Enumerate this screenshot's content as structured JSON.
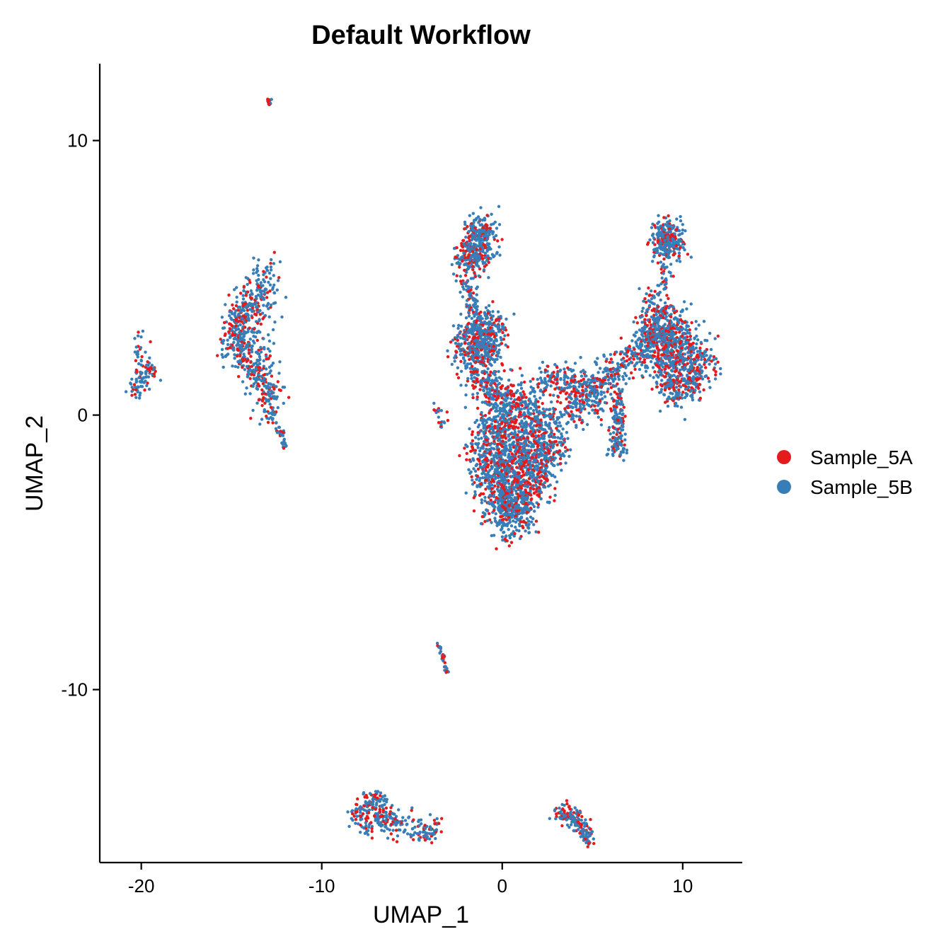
{
  "chart_data": {
    "type": "scatter",
    "title": "Default Workflow",
    "xlabel": "UMAP_1",
    "ylabel": "UMAP_2",
    "xlim": [
      -22.3,
      13.3
    ],
    "ylim": [
      -16.3,
      12.8
    ],
    "x_ticks": [
      -20,
      -10,
      0,
      10
    ],
    "x_tick_labels": [
      "-20",
      "-10",
      "0",
      "10"
    ],
    "y_ticks": [
      -10,
      0,
      10
    ],
    "y_tick_labels": [
      "-10",
      "0",
      "10"
    ],
    "grid": false,
    "legend": {
      "position": "right",
      "entries": [
        {
          "label": "Sample_5A",
          "color": "#E41A1C"
        },
        {
          "label": "Sample_5B",
          "color": "#377EB8"
        }
      ]
    },
    "series": [
      {
        "name": "Sample_5A",
        "color": "#E41A1C"
      },
      {
        "name": "Sample_5B",
        "color": "#377EB8"
      }
    ],
    "clusters": [
      {
        "points": [
          [
            -20.2,
            2.5
          ],
          [
            -20.0,
            1.5
          ],
          [
            -20.3,
            0.9
          ],
          [
            -19.5,
            1.6
          ]
        ],
        "spread": 0.22,
        "n": 110
      },
      {
        "points": [
          [
            -12.9,
            11.4
          ]
        ],
        "spread": 0.07,
        "n": 14
      },
      {
        "points": [
          [
            -13.0,
            5.0
          ],
          [
            -13.6,
            4.4
          ],
          [
            -14.2,
            3.9
          ],
          [
            -14.8,
            3.4
          ],
          [
            -14.9,
            2.7
          ],
          [
            -14.3,
            2.2
          ],
          [
            -13.6,
            1.6
          ],
          [
            -13.0,
            1.0
          ],
          [
            -13.0,
            0.4
          ]
        ],
        "spread": 0.4,
        "n": 650
      },
      {
        "points": [
          [
            -12.7,
            0.0
          ],
          [
            -12.3,
            -0.6
          ],
          [
            -12.0,
            -1.1
          ]
        ],
        "spread": 0.1,
        "n": 40
      },
      {
        "points": [
          [
            -1.5,
            6.6
          ],
          [
            -0.9,
            6.6
          ],
          [
            -2.0,
            5.7
          ],
          [
            -1.2,
            5.8
          ]
        ],
        "spread": 0.35,
        "n": 380
      },
      {
        "points": [
          [
            -1.9,
            4.7
          ],
          [
            -1.5,
            3.9
          ],
          [
            -1.8,
            4.3
          ]
        ],
        "spread": 0.25,
        "n": 70
      },
      {
        "points": [
          [
            -1.8,
            3.2
          ],
          [
            -1.0,
            3.1
          ],
          [
            -0.4,
            3.2
          ],
          [
            -2.3,
            2.4
          ],
          [
            -1.4,
            2.3
          ],
          [
            -0.6,
            2.4
          ],
          [
            -1.2,
            2.8
          ]
        ],
        "spread": 0.35,
        "n": 520
      },
      {
        "points": [
          [
            -1.6,
            1.5
          ],
          [
            -0.8,
            1.2
          ],
          [
            -0.2,
            0.9
          ]
        ],
        "spread": 0.35,
        "n": 160
      },
      {
        "points": [
          [
            -0.6,
            0.4
          ],
          [
            0.5,
            0.6
          ],
          [
            1.5,
            0.5
          ],
          [
            -0.9,
            -0.5
          ],
          [
            0.2,
            -0.3
          ],
          [
            1.3,
            -0.4
          ],
          [
            2.3,
            -0.3
          ],
          [
            -1.2,
            -1.6
          ],
          [
            -0.1,
            -1.4
          ],
          [
            1.1,
            -1.5
          ],
          [
            2.3,
            -1.4
          ],
          [
            3.2,
            -1.0
          ],
          [
            -1.0,
            -2.5
          ],
          [
            0.2,
            -2.6
          ],
          [
            1.4,
            -2.3
          ],
          [
            2.3,
            -2.0
          ],
          [
            -0.5,
            -3.3
          ],
          [
            0.6,
            -3.4
          ],
          [
            1.5,
            -3.0
          ],
          [
            0.3,
            -3.8
          ],
          [
            1.0,
            -3.7
          ]
        ],
        "spread": 0.45,
        "n": 2000
      },
      {
        "points": [
          [
            2.5,
            1.2
          ],
          [
            3.5,
            1.2
          ],
          [
            4.7,
            1.0
          ],
          [
            5.8,
            1.5
          ],
          [
            6.5,
            1.6
          ],
          [
            4.0,
            0.3
          ],
          [
            5.2,
            0.6
          ]
        ],
        "spread": 0.35,
        "n": 450
      },
      {
        "points": [
          [
            6.4,
            0.5
          ],
          [
            6.5,
            -0.3
          ],
          [
            6.2,
            -1.1
          ],
          [
            6.5,
            -1.3
          ]
        ],
        "spread": 0.22,
        "n": 160
      },
      {
        "points": [
          [
            7.2,
            2.0
          ],
          [
            7.8,
            2.5
          ],
          [
            8.3,
            2.8
          ]
        ],
        "spread": 0.35,
        "n": 180
      },
      {
        "points": [
          [
            8.8,
            6.6
          ],
          [
            9.4,
            6.6
          ],
          [
            9.6,
            6.2
          ],
          [
            8.8,
            6.0
          ]
        ],
        "spread": 0.3,
        "n": 280
      },
      {
        "points": [
          [
            9.2,
            5.3
          ],
          [
            9.0,
            4.8
          ],
          [
            8.3,
            4.3
          ]
        ],
        "spread": 0.15,
        "n": 30
      },
      {
        "points": [
          [
            8.3,
            3.8
          ],
          [
            9.0,
            3.6
          ],
          [
            9.7,
            3.4
          ],
          [
            8.2,
            3.0
          ],
          [
            9.2,
            2.7
          ],
          [
            9.9,
            2.5
          ],
          [
            8.9,
            2.0
          ],
          [
            10.6,
            2.2
          ],
          [
            11.4,
            2.0
          ],
          [
            8.8,
            1.4
          ],
          [
            9.5,
            1.2
          ],
          [
            10.4,
            1.4
          ],
          [
            9.6,
            0.8
          ],
          [
            10.5,
            1.0
          ]
        ],
        "spread": 0.38,
        "n": 950
      },
      {
        "points": [
          [
            -3.6,
            0.2
          ],
          [
            -3.2,
            -0.1
          ],
          [
            -3.3,
            -0.5
          ]
        ],
        "spread": 0.12,
        "n": 22
      },
      {
        "points": [
          [
            -3.5,
            -8.4
          ],
          [
            -3.3,
            -8.8
          ],
          [
            -3.1,
            -9.3
          ]
        ],
        "spread": 0.05,
        "n": 35
      },
      {
        "points": [
          [
            -8.1,
            -14.5
          ],
          [
            -7.5,
            -14.1
          ],
          [
            -7.0,
            -14.0
          ],
          [
            -6.6,
            -14.4
          ],
          [
            -7.0,
            -14.8
          ],
          [
            -7.6,
            -15.0
          ],
          [
            -6.2,
            -14.7
          ],
          [
            -5.6,
            -15.0
          ],
          [
            -4.8,
            -15.2
          ],
          [
            -4.0,
            -15.2
          ],
          [
            -3.5,
            -15.1
          ]
        ],
        "spread": 0.2,
        "n": 330
      },
      {
        "points": [
          [
            3.2,
            -14.5
          ],
          [
            3.7,
            -14.6
          ],
          [
            4.2,
            -14.8
          ],
          [
            4.6,
            -15.1
          ],
          [
            4.7,
            -15.4
          ]
        ],
        "spread": 0.2,
        "n": 170
      }
    ]
  }
}
